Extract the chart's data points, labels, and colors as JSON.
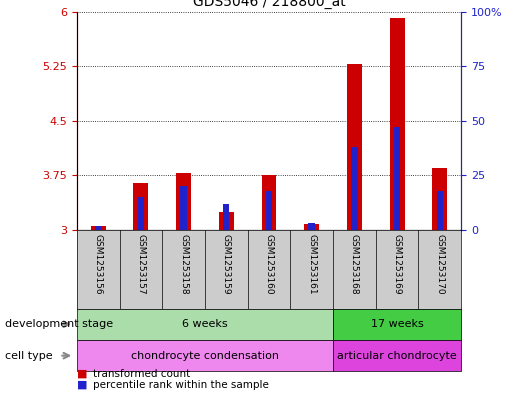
{
  "title": "GDS5046 / 218800_at",
  "samples": [
    "GSM1253156",
    "GSM1253157",
    "GSM1253158",
    "GSM1253159",
    "GSM1253160",
    "GSM1253161",
    "GSM1253168",
    "GSM1253169",
    "GSM1253170"
  ],
  "transformed_counts": [
    3.05,
    3.65,
    3.78,
    3.25,
    3.75,
    3.08,
    5.28,
    5.92,
    3.85
  ],
  "percentile_ranks": [
    2,
    15,
    20,
    12,
    18,
    3,
    38,
    47,
    18
  ],
  "bar_baseline": 3.0,
  "ylim_left": [
    3.0,
    6.0
  ],
  "ylim_right": [
    0,
    100
  ],
  "yticks_left": [
    3,
    3.75,
    4.5,
    5.25,
    6
  ],
  "yticks_right": [
    0,
    25,
    50,
    75,
    100
  ],
  "ytick_labels_left": [
    "3",
    "3.75",
    "4.5",
    "5.25",
    "6"
  ],
  "ytick_labels_right": [
    "0",
    "25",
    "50",
    "75",
    "100%"
  ],
  "bar_color_red": "#cc0000",
  "bar_color_blue": "#2222cc",
  "bar_width": 0.35,
  "blue_bar_width": 0.15,
  "development_stage_groups": [
    {
      "label": "6 weeks",
      "start": 0,
      "end": 5,
      "color": "#aaddaa"
    },
    {
      "label": "17 weeks",
      "start": 6,
      "end": 8,
      "color": "#44cc44"
    }
  ],
  "cell_type_groups": [
    {
      "label": "chondrocyte condensation",
      "start": 0,
      "end": 5,
      "color": "#ee88ee"
    },
    {
      "label": "articular chondrocyte",
      "start": 6,
      "end": 8,
      "color": "#dd44dd"
    }
  ],
  "dev_stage_label": "development stage",
  "cell_type_label": "cell type",
  "legend_red_label": "transformed count",
  "legend_blue_label": "percentile rank within the sample",
  "bg_color": "#ffffff",
  "plot_bg_color": "#ffffff",
  "left_tick_color": "#cc0000",
  "right_tick_color": "#2222cc",
  "sample_box_color": "#cccccc"
}
